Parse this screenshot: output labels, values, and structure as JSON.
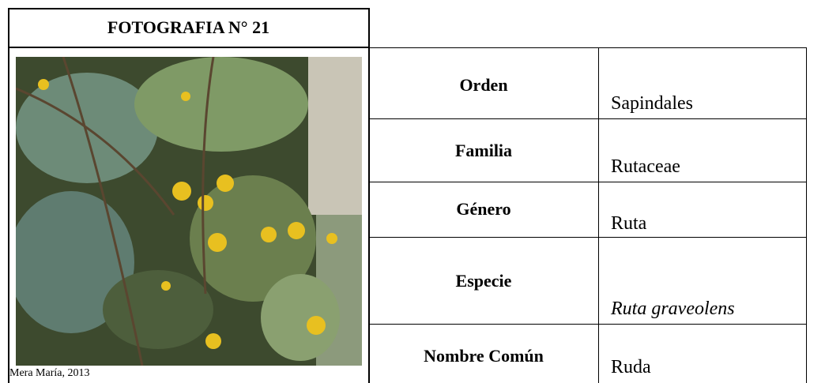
{
  "header": {
    "title": "FOTOGRAFIA N° 21"
  },
  "photo": {
    "caption": "Mera María, 2013"
  },
  "table": {
    "rows": [
      [
        "Orden",
        "Sapindales"
      ],
      [
        "Familia",
        "Rutaceae"
      ],
      [
        "Género",
        "Ruta"
      ],
      [
        "Especie",
        "Ruta graveolens"
      ],
      [
        "Nombre Común",
        "Ruda"
      ]
    ]
  }
}
